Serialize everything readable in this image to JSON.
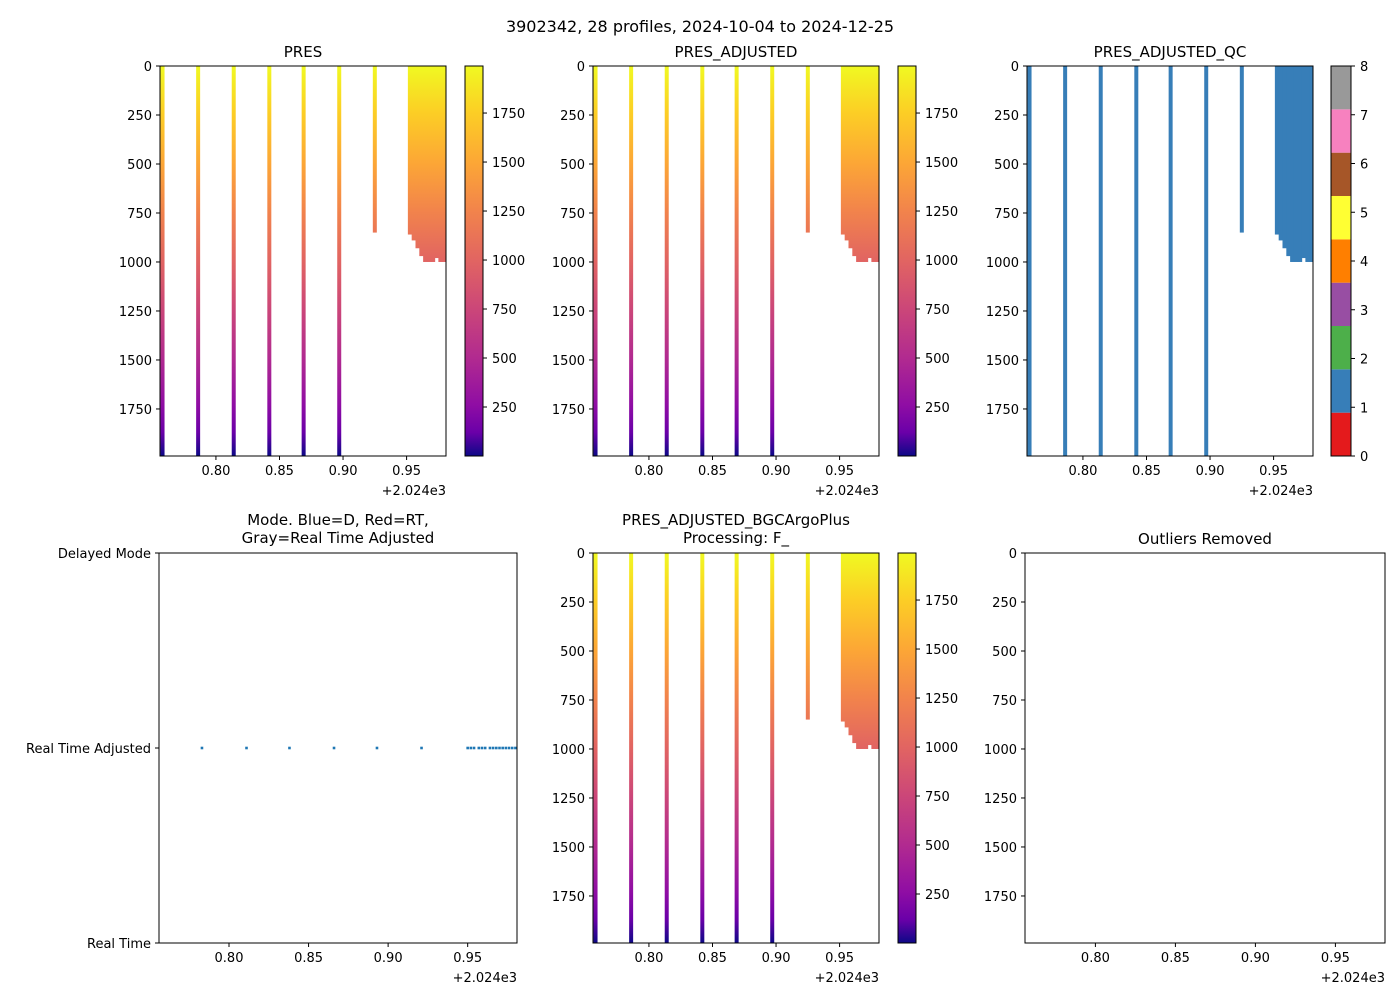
{
  "figure": {
    "suptitle": "3902342, 28 profiles, 2024-10-04 to 2024-12-25"
  },
  "chart_data": [
    {
      "type": "heatmap",
      "title": "PRES",
      "x_ticks": [
        "0.80",
        "0.85",
        "0.90",
        "0.95"
      ],
      "x_offset_label": "+2.024e3",
      "x_tick_values": [
        0.8,
        0.85,
        0.9,
        0.95
      ],
      "xlim": [
        0.756,
        0.981
      ],
      "ylim": [
        1990,
        0
      ],
      "y_ticks": [
        "0",
        "250",
        "500",
        "750",
        "1000",
        "1250",
        "1500",
        "1750"
      ],
      "y_tick_values": [
        0,
        250,
        500,
        750,
        1000,
        1250,
        1500,
        1750
      ],
      "colorbar": {
        "cmap": "plasma_r",
        "range": [
          0,
          1990
        ],
        "ticks": [
          "250",
          "500",
          "750",
          "1000",
          "1250",
          "1500",
          "1750"
        ],
        "tick_values": [
          250,
          500,
          750,
          1000,
          1250,
          1500,
          1750
        ]
      },
      "profiles_x": [
        0.758,
        0.786,
        0.814,
        0.842,
        0.869,
        0.897
      ],
      "profiles_max_pres": 1990,
      "short_profile": {
        "x": 0.925,
        "max_pres": 850
      },
      "dense_block": {
        "x_start": 0.951,
        "x_end": 0.981,
        "max_pres_steps": [
          860,
          890,
          930,
          970,
          1000,
          1000,
          1000,
          980,
          1000,
          1000
        ]
      }
    },
    {
      "type": "heatmap",
      "title": "PRES_ADJUSTED",
      "x_ticks": [
        "0.80",
        "0.85",
        "0.90",
        "0.95"
      ],
      "x_offset_label": "+2.024e3",
      "x_tick_values": [
        0.8,
        0.85,
        0.9,
        0.95
      ],
      "xlim": [
        0.756,
        0.981
      ],
      "ylim": [
        1990,
        0
      ],
      "y_ticks": [
        "0",
        "250",
        "500",
        "750",
        "1000",
        "1250",
        "1500",
        "1750"
      ],
      "y_tick_values": [
        0,
        250,
        500,
        750,
        1000,
        1250,
        1500,
        1750
      ],
      "colorbar": {
        "cmap": "plasma_r",
        "range": [
          0,
          1990
        ],
        "ticks": [
          "250",
          "500",
          "750",
          "1000",
          "1250",
          "1500",
          "1750"
        ],
        "tick_values": [
          250,
          500,
          750,
          1000,
          1250,
          1500,
          1750
        ]
      },
      "profiles_x": [
        0.758,
        0.786,
        0.814,
        0.842,
        0.869,
        0.897
      ],
      "profiles_max_pres": 1990,
      "short_profile": {
        "x": 0.925,
        "max_pres": 850
      },
      "dense_block": {
        "x_start": 0.951,
        "x_end": 0.981,
        "max_pres_steps": [
          860,
          890,
          930,
          970,
          1000,
          1000,
          1000,
          980,
          1000,
          1000
        ]
      }
    },
    {
      "type": "heatmap",
      "title": "PRES_ADJUSTED_QC",
      "x_ticks": [
        "0.80",
        "0.85",
        "0.90",
        "0.95"
      ],
      "x_offset_label": "+2.024e3",
      "x_tick_values": [
        0.8,
        0.85,
        0.9,
        0.95
      ],
      "xlim": [
        0.756,
        0.981
      ],
      "ylim": [
        1990,
        0
      ],
      "y_ticks": [
        "0",
        "250",
        "500",
        "750",
        "1000",
        "1250",
        "1500",
        "1750"
      ],
      "y_tick_values": [
        0,
        250,
        500,
        750,
        1000,
        1250,
        1500,
        1750
      ],
      "qc_value": 1,
      "qc_color": "#377eb8",
      "colorbar": {
        "cmap": "qc_discrete",
        "ticks": [
          "0",
          "1",
          "2",
          "3",
          "4",
          "5",
          "6",
          "7",
          "8"
        ],
        "colors": [
          "#e41a1c",
          "#377eb8",
          "#4daf4a",
          "#984ea3",
          "#ff7f00",
          "#ffff33",
          "#a65628",
          "#f781bf",
          "#999999"
        ]
      },
      "profiles_x": [
        0.758,
        0.786,
        0.814,
        0.842,
        0.869,
        0.897
      ],
      "profiles_max_pres": 1990,
      "short_profile": {
        "x": 0.925,
        "max_pres": 850
      },
      "dense_block": {
        "x_start": 0.951,
        "x_end": 0.981,
        "max_pres_steps": [
          860,
          890,
          930,
          970,
          1000,
          1000,
          1000,
          980,
          1000,
          1000
        ]
      }
    },
    {
      "type": "scatter",
      "title": "Mode. Blue=D, Red=RT,",
      "title_line2": "Gray=Real Time Adjusted",
      "x_ticks": [
        "0.80",
        "0.85",
        "0.90",
        "0.95"
      ],
      "x_offset_label": "+2.024e3",
      "x_tick_values": [
        0.8,
        0.85,
        0.9,
        0.95
      ],
      "xlim": [
        0.756,
        0.981
      ],
      "y_categories": [
        "Delayed Mode",
        "Real Time Adjusted",
        "Real Time"
      ],
      "y_tick_values": [
        2,
        1,
        0
      ],
      "ylim": [
        0,
        2
      ],
      "series": [
        {
          "name": "Real Time Adjusted",
          "color": "#1f77b4",
          "y": 1,
          "x": [
            0.783,
            0.811,
            0.838,
            0.866,
            0.893,
            0.921,
            0.95,
            0.952,
            0.954,
            0.957,
            0.959,
            0.961,
            0.964,
            0.966,
            0.968,
            0.97,
            0.972,
            0.974,
            0.976,
            0.978,
            0.98
          ]
        }
      ]
    },
    {
      "type": "heatmap",
      "title": "PRES_ADJUSTED_BGCArgoPlus",
      "title_line2": "Processing: F_",
      "x_ticks": [
        "0.80",
        "0.85",
        "0.90",
        "0.95"
      ],
      "x_offset_label": "+2.024e3",
      "x_tick_values": [
        0.8,
        0.85,
        0.9,
        0.95
      ],
      "xlim": [
        0.756,
        0.981
      ],
      "ylim": [
        1990,
        0
      ],
      "y_ticks": [
        "0",
        "250",
        "500",
        "750",
        "1000",
        "1250",
        "1500",
        "1750"
      ],
      "y_tick_values": [
        0,
        250,
        500,
        750,
        1000,
        1250,
        1500,
        1750
      ],
      "colorbar": {
        "cmap": "plasma_r",
        "range": [
          0,
          1990
        ],
        "ticks": [
          "250",
          "500",
          "750",
          "1000",
          "1250",
          "1500",
          "1750"
        ],
        "tick_values": [
          250,
          500,
          750,
          1000,
          1250,
          1500,
          1750
        ]
      },
      "profiles_x": [
        0.758,
        0.786,
        0.814,
        0.842,
        0.869,
        0.897
      ],
      "profiles_max_pres": 1990,
      "short_profile": {
        "x": 0.925,
        "max_pres": 850
      },
      "dense_block": {
        "x_start": 0.951,
        "x_end": 0.981,
        "max_pres_steps": [
          860,
          890,
          930,
          970,
          1000,
          1000,
          1000,
          980,
          1000,
          1000
        ]
      }
    },
    {
      "type": "heatmap",
      "title": "Outliers Removed",
      "x_ticks": [
        "0.80",
        "0.85",
        "0.90",
        "0.95"
      ],
      "x_offset_label": "+2.024e3",
      "x_tick_values": [
        0.8,
        0.85,
        0.9,
        0.95
      ],
      "xlim": [
        0.756,
        0.981
      ],
      "ylim": [
        1990,
        0
      ],
      "y_ticks": [
        "0",
        "250",
        "500",
        "750",
        "1000",
        "1250",
        "1500",
        "1750"
      ],
      "y_tick_values": [
        0,
        250,
        500,
        750,
        1000,
        1250,
        1500,
        1750
      ],
      "empty": true
    }
  ]
}
